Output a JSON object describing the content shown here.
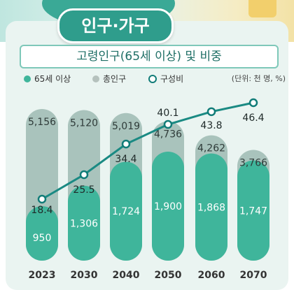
{
  "title": "인구·가구",
  "subtitle": "고령인구(65세 이상) 및 비중",
  "legend": [
    {
      "label": "65세 이상",
      "type": "dot",
      "color": "#3fb59b"
    },
    {
      "label": "총인구",
      "type": "dot",
      "color": "#b5c1bd"
    },
    {
      "label": "구성비",
      "type": "ring",
      "color": "#117c78"
    }
  ],
  "unit_label": "(단위: 천 명, %)",
  "colors": {
    "total_bar": "#a9c3bc",
    "elderly_bar": "#3fb59b",
    "line": "#1a8a83"
  },
  "chart_data": {
    "type": "bar",
    "categories": [
      "2023",
      "2030",
      "2040",
      "2050",
      "2060",
      "2070"
    ],
    "series": [
      {
        "name": "총인구",
        "values": [
          51560,
          51200,
          50190,
          47360,
          42620,
          37660
        ],
        "labels": [
          "5,156",
          "5,120",
          "5,019",
          "4,736",
          "4,262",
          "3,766"
        ]
      },
      {
        "name": "65세 이상",
        "values": [
          9500,
          13060,
          17240,
          19000,
          18680,
          17470
        ],
        "labels": [
          "950",
          "1,306",
          "1,724",
          "1,900",
          "1,868",
          "1,747"
        ]
      },
      {
        "name": "구성비",
        "type": "line",
        "values": [
          18.4,
          25.5,
          34.4,
          40.1,
          43.8,
          46.4
        ],
        "labels": [
          "18.4",
          "25.5",
          "34.4",
          "40.1",
          "43.8",
          "46.4"
        ]
      }
    ]
  }
}
